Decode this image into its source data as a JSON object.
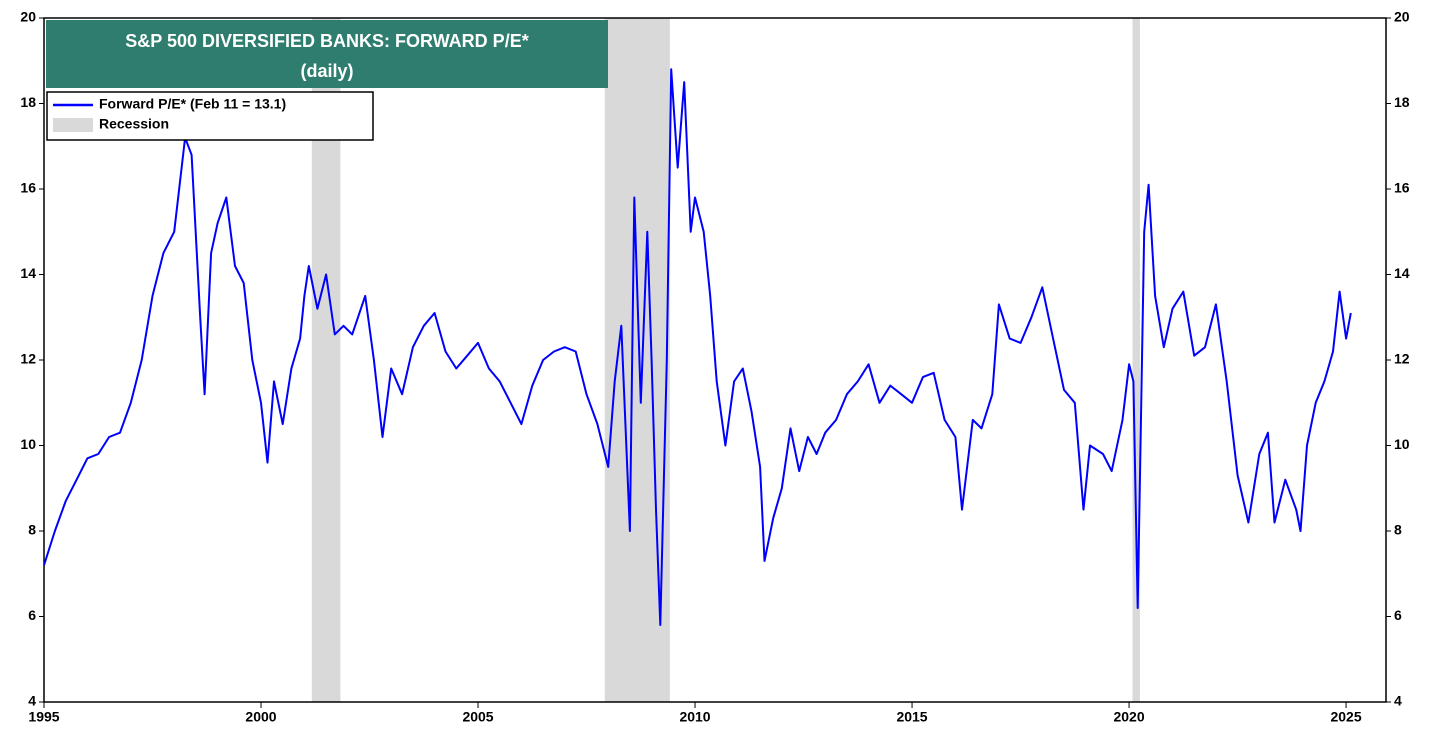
{
  "chart_data": {
    "type": "line",
    "title": "S&P 500 DIVERSIFIED BANKS: FORWARD P/E*",
    "subtitle": "(daily)",
    "xlim": [
      1995,
      2025.92
    ],
    "xticks": [
      1995,
      2000,
      2005,
      2010,
      2015,
      2020,
      2025
    ],
    "ylim": [
      4,
      20
    ],
    "yticks": [
      4,
      6,
      8,
      10,
      12,
      14,
      16,
      18,
      20
    ],
    "recession": {
      "name": "Recession",
      "color": "#d9d9d9",
      "spans": [
        [
          2001.17,
          2001.83
        ],
        [
          2007.92,
          2009.42
        ],
        [
          2020.08,
          2020.25
        ]
      ]
    },
    "series": [
      {
        "name": "Forward P/E* (Feb 11 = 13.1)",
        "color": "#0000ff",
        "x": [
          1995.0,
          1995.25,
          1995.5,
          1995.75,
          1996.0,
          1996.25,
          1996.5,
          1996.75,
          1997.0,
          1997.25,
          1997.5,
          1997.75,
          1998.0,
          1998.25,
          1998.4,
          1998.6,
          1998.7,
          1998.85,
          1999.0,
          1999.2,
          1999.4,
          1999.6,
          1999.8,
          2000.0,
          2000.15,
          2000.3,
          2000.5,
          2000.7,
          2000.9,
          2001.0,
          2001.1,
          2001.3,
          2001.5,
          2001.7,
          2001.9,
          2002.1,
          2002.4,
          2002.6,
          2002.8,
          2003.0,
          2003.25,
          2003.5,
          2003.75,
          2004.0,
          2004.25,
          2004.5,
          2004.75,
          2005.0,
          2005.25,
          2005.5,
          2005.75,
          2006.0,
          2006.25,
          2006.5,
          2006.75,
          2007.0,
          2007.25,
          2007.5,
          2007.75,
          2008.0,
          2008.15,
          2008.3,
          2008.5,
          2008.6,
          2008.75,
          2008.9,
          2009.0,
          2009.1,
          2009.2,
          2009.35,
          2009.45,
          2009.6,
          2009.75,
          2009.9,
          2010.0,
          2010.2,
          2010.35,
          2010.5,
          2010.7,
          2010.9,
          2011.1,
          2011.3,
          2011.5,
          2011.6,
          2011.8,
          2012.0,
          2012.2,
          2012.4,
          2012.6,
          2012.8,
          2013.0,
          2013.25,
          2013.5,
          2013.75,
          2014.0,
          2014.25,
          2014.5,
          2014.75,
          2015.0,
          2015.25,
          2015.5,
          2015.75,
          2016.0,
          2016.15,
          2016.4,
          2016.6,
          2016.85,
          2017.0,
          2017.25,
          2017.5,
          2017.75,
          2018.0,
          2018.25,
          2018.5,
          2018.75,
          2018.95,
          2019.1,
          2019.4,
          2019.6,
          2019.85,
          2020.0,
          2020.1,
          2020.2,
          2020.35,
          2020.45,
          2020.6,
          2020.8,
          2021.0,
          2021.25,
          2021.5,
          2021.75,
          2022.0,
          2022.25,
          2022.5,
          2022.75,
          2023.0,
          2023.2,
          2023.35,
          2023.6,
          2023.85,
          2023.95,
          2024.1,
          2024.3,
          2024.5,
          2024.7,
          2024.85,
          2025.0,
          2025.11
        ],
        "values": [
          7.2,
          8.0,
          8.7,
          9.2,
          9.7,
          9.8,
          10.2,
          10.3,
          11.0,
          12.0,
          13.5,
          14.5,
          15.0,
          17.2,
          16.8,
          13.0,
          11.2,
          14.5,
          15.2,
          15.8,
          14.2,
          13.8,
          12.0,
          11.0,
          9.6,
          11.5,
          10.5,
          11.8,
          12.5,
          13.5,
          14.2,
          13.2,
          14.0,
          12.6,
          12.8,
          12.6,
          13.5,
          12.0,
          10.2,
          11.8,
          11.2,
          12.3,
          12.8,
          13.1,
          12.2,
          11.8,
          12.1,
          12.4,
          11.8,
          11.5,
          11.0,
          10.5,
          11.4,
          12.0,
          12.2,
          12.3,
          12.2,
          11.2,
          10.5,
          9.5,
          11.5,
          12.8,
          8.0,
          15.8,
          11.0,
          15.0,
          12.0,
          8.5,
          5.8,
          12.0,
          18.8,
          16.5,
          18.5,
          15.0,
          15.8,
          15.0,
          13.5,
          11.5,
          10.0,
          11.5,
          11.8,
          10.8,
          9.5,
          7.3,
          8.3,
          9.0,
          10.4,
          9.4,
          10.2,
          9.8,
          10.3,
          10.6,
          11.2,
          11.5,
          11.9,
          11.0,
          11.4,
          11.2,
          11.0,
          11.6,
          11.7,
          10.6,
          10.2,
          8.5,
          10.6,
          10.4,
          11.2,
          13.3,
          12.5,
          12.4,
          13.0,
          13.7,
          12.5,
          11.3,
          11.0,
          8.5,
          10.0,
          9.8,
          9.4,
          10.6,
          11.9,
          11.5,
          6.2,
          15.0,
          16.1,
          13.5,
          12.3,
          13.2,
          13.6,
          12.1,
          12.3,
          13.3,
          11.5,
          9.3,
          8.2,
          9.8,
          10.3,
          8.2,
          9.2,
          8.5,
          8.0,
          10.0,
          11.0,
          11.5,
          12.2,
          13.6,
          12.5,
          13.1
        ]
      }
    ]
  }
}
